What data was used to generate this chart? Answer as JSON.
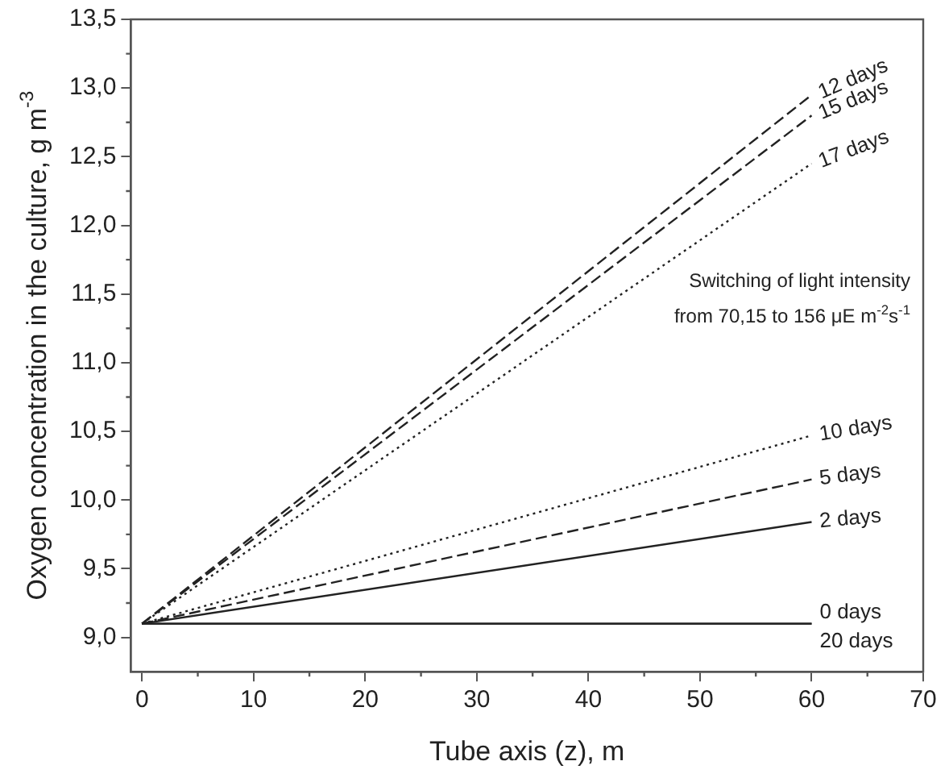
{
  "chart_data": {
    "type": "line",
    "xlabel": "Tube axis (z), m",
    "ylabel": "Oxygen concentration in the culture, g m$^{-3}$",
    "x": [
      0,
      60
    ],
    "series": [
      {
        "name": "12 days",
        "color": "#222222",
        "line_style": "dashed",
        "values": [
          9.1,
          12.95
        ]
      },
      {
        "name": "15 days",
        "color": "#222222",
        "line_style": "dashed",
        "values": [
          9.1,
          12.8
        ]
      },
      {
        "name": "17 days",
        "color": "#222222",
        "line_style": "dotted",
        "values": [
          9.1,
          12.45
        ]
      },
      {
        "name": "10 days",
        "color": "#222222",
        "line_style": "dotted",
        "values": [
          9.1,
          10.47
        ]
      },
      {
        "name": "5 days",
        "color": "#222222",
        "line_style": "dashed",
        "values": [
          9.1,
          10.15
        ]
      },
      {
        "name": "2 days",
        "color": "#222222",
        "line_style": "solid",
        "values": [
          9.1,
          9.84
        ]
      },
      {
        "name": "0 days",
        "color": "#222222",
        "line_style": "solid",
        "values": [
          9.1,
          9.1
        ]
      },
      {
        "name": "20 days",
        "color": "#222222",
        "line_style": "solid",
        "values": [
          9.1,
          9.1
        ]
      }
    ],
    "xlim": [
      -1,
      70
    ],
    "xticks": [
      0,
      10,
      20,
      30,
      40,
      50,
      60,
      70
    ],
    "ylim": [
      8.75,
      13.5
    ],
    "yticks": [
      {
        "value": 9,
        "label": "9,0"
      },
      {
        "value": 9.5,
        "label": "9,5"
      },
      {
        "value": 10,
        "label": "10,0"
      },
      {
        "value": 10.5,
        "label": "10,5"
      },
      {
        "value": 11,
        "label": "11,0"
      },
      {
        "value": 11.5,
        "label": "11,5"
      },
      {
        "value": 12,
        "label": "12,0"
      },
      {
        "value": 12.5,
        "label": "12,5"
      },
      {
        "value": 13,
        "label": "13,0"
      },
      {
        "value": 13.5,
        "label": "13,5"
      }
    ],
    "annotations": [
      "Switching of light intensity",
      "from 70,15 to 156 μE m$^{-2}$s$^{-1}$"
    ],
    "grid": false,
    "legend": false,
    "marker": "none"
  }
}
